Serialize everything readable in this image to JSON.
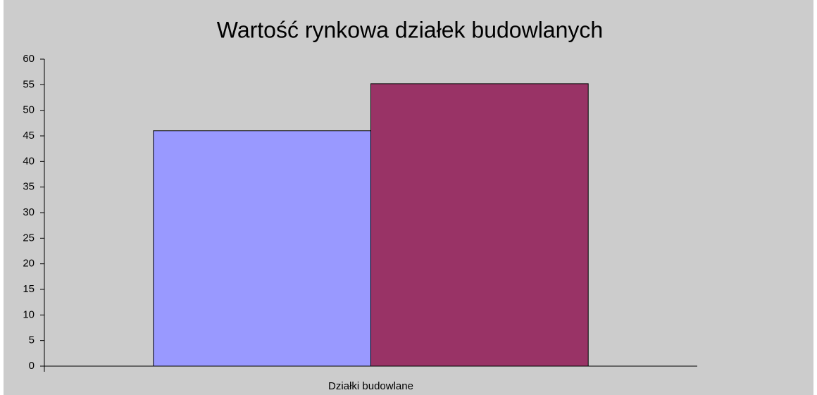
{
  "chart_data": {
    "type": "bar",
    "title": "Wartość rynkowa działek budowlanych",
    "categories": [
      "Działki budowlane"
    ],
    "series": [
      {
        "color": "#9999ff",
        "values": [
          46
        ]
      },
      {
        "color": "#993366",
        "values": [
          55.2
        ]
      }
    ],
    "ylim": [
      0,
      60
    ],
    "yticks": [
      0,
      5,
      10,
      15,
      20,
      25,
      30,
      35,
      40,
      45,
      50,
      55,
      60
    ],
    "grid": false
  }
}
